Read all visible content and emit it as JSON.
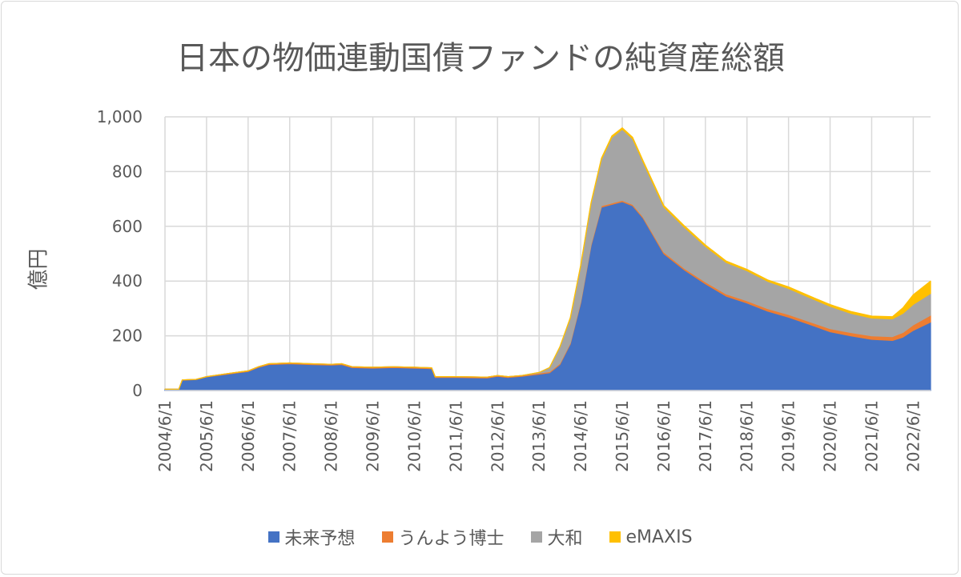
{
  "chart_data": {
    "type": "area",
    "stacked": true,
    "title": "日本の物価連動国債ファンドの純資産総額",
    "ylabel": "億円",
    "xlabel": "",
    "ylim": [
      0,
      1000
    ],
    "yticks": [
      "0",
      "200",
      "400",
      "600",
      "800",
      "1,000"
    ],
    "ytick_values": [
      0,
      200,
      400,
      600,
      800,
      1000
    ],
    "xticks": [
      "2004/6/1",
      "2005/6/1",
      "2006/6/1",
      "2007/6/1",
      "2008/6/1",
      "2009/6/1",
      "2010/6/1",
      "2011/6/1",
      "2012/6/1",
      "2013/6/1",
      "2014/6/1",
      "2015/6/1",
      "2016/6/1",
      "2017/6/1",
      "2018/6/1",
      "2019/6/1",
      "2020/6/1",
      "2021/6/1",
      "2022/6/1"
    ],
    "xrange": [
      "2004/6/1",
      "2022/11/1"
    ],
    "grid": true,
    "legend_position": "bottom",
    "series": [
      {
        "name": "未来予想",
        "color": "#4472c4"
      },
      {
        "name": "うんよう博士",
        "color": "#ed7d31"
      },
      {
        "name": "大和",
        "color": "#a5a5a5"
      },
      {
        "name": "eMAXIS",
        "color": "#ffc000"
      }
    ],
    "columns": [
      "date",
      "未来予想",
      "うんよう博士",
      "大和",
      "eMAXIS"
    ],
    "points": [
      [
        "2004/6",
        5,
        0,
        0,
        0
      ],
      [
        "2004/10",
        5,
        0,
        0,
        0
      ],
      [
        "2004/11",
        38,
        1,
        0,
        0
      ],
      [
        "2005/3",
        40,
        1,
        0,
        0
      ],
      [
        "2005/6",
        50,
        1,
        0,
        0
      ],
      [
        "2005/12",
        60,
        2,
        0,
        0
      ],
      [
        "2006/3",
        65,
        2,
        0,
        0
      ],
      [
        "2006/6",
        70,
        2,
        0,
        0
      ],
      [
        "2006/9",
        85,
        2,
        0,
        0
      ],
      [
        "2006/12",
        95,
        3,
        0,
        0
      ],
      [
        "2007/6",
        98,
        3,
        0,
        0
      ],
      [
        "2007/12",
        95,
        3,
        0,
        0
      ],
      [
        "2008/6",
        93,
        3,
        0,
        0
      ],
      [
        "2008/9",
        95,
        3,
        0,
        0
      ],
      [
        "2008/12",
        84,
        3,
        0,
        0
      ],
      [
        "2009/6",
        82,
        3,
        0,
        0
      ],
      [
        "2009/12",
        84,
        3,
        0,
        0
      ],
      [
        "2010/6",
        82,
        3,
        0,
        0
      ],
      [
        "2010/11",
        80,
        3,
        0,
        0
      ],
      [
        "2010/12",
        48,
        3,
        0,
        0
      ],
      [
        "2011/6",
        48,
        3,
        0,
        0
      ],
      [
        "2012/3",
        46,
        3,
        0,
        0
      ],
      [
        "2012/6",
        52,
        3,
        0,
        0
      ],
      [
        "2012/9",
        48,
        3,
        0,
        0
      ],
      [
        "2013/1",
        52,
        3,
        0,
        0
      ],
      [
        "2013/6",
        60,
        4,
        2,
        0
      ],
      [
        "2013/9",
        65,
        4,
        15,
        0
      ],
      [
        "2013/12",
        95,
        4,
        60,
        1
      ],
      [
        "2014/3",
        170,
        4,
        90,
        2
      ],
      [
        "2014/6",
        320,
        5,
        130,
        3
      ],
      [
        "2014/9",
        530,
        5,
        150,
        3
      ],
      [
        "2014/12",
        670,
        5,
        170,
        4
      ],
      [
        "2015/3",
        680,
        5,
        240,
        5
      ],
      [
        "2015/6",
        690,
        5,
        260,
        5
      ],
      [
        "2015/9",
        675,
        5,
        240,
        5
      ],
      [
        "2015/12",
        630,
        5,
        200,
        5
      ],
      [
        "2016/6",
        500,
        6,
        165,
        5
      ],
      [
        "2016/12",
        440,
        6,
        150,
        5
      ],
      [
        "2017/6",
        390,
        7,
        130,
        5
      ],
      [
        "2017/12",
        345,
        8,
        115,
        5
      ],
      [
        "2018/6",
        320,
        8,
        110,
        5
      ],
      [
        "2018/12",
        290,
        9,
        100,
        5
      ],
      [
        "2019/6",
        268,
        10,
        95,
        6
      ],
      [
        "2019/12",
        242,
        10,
        88,
        6
      ],
      [
        "2020/6",
        215,
        11,
        82,
        6
      ],
      [
        "2020/12",
        200,
        12,
        70,
        7
      ],
      [
        "2021/6",
        187,
        13,
        65,
        7
      ],
      [
        "2021/12",
        183,
        14,
        65,
        8
      ],
      [
        "2022/3",
        195,
        17,
        70,
        20
      ],
      [
        "2022/6",
        220,
        20,
        75,
        35
      ],
      [
        "2022/11",
        250,
        25,
        80,
        45
      ]
    ]
  }
}
